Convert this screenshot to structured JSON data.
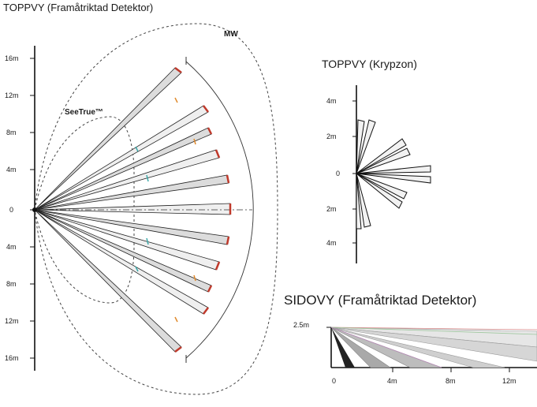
{
  "titles": {
    "top_forward": "TOPPVY (Framåtriktad Detektor)",
    "top_crawl": "TOPPVY (Krypzon)",
    "side_forward": "SIDOVY (Framåtriktad Detektor)"
  },
  "labels": {
    "mw": "MW",
    "seetrue": "SeeTrue™",
    "height": "2.5m"
  },
  "left_y_ticks": [
    "16m",
    "12m",
    "8m",
    "4m",
    "0",
    "4m",
    "8m",
    "12m",
    "16m"
  ],
  "crawl_y_ticks": [
    "4m",
    "2m",
    "0",
    "2m",
    "4m"
  ],
  "side_x_ticks": [
    "0",
    "4m",
    "8m",
    "12m"
  ],
  "colors": {
    "zone_fill": "#dcdcdc",
    "marker_red": "#c0392b",
    "marker_orange": "#e08a2c",
    "marker_teal": "#3aa7a7"
  }
}
